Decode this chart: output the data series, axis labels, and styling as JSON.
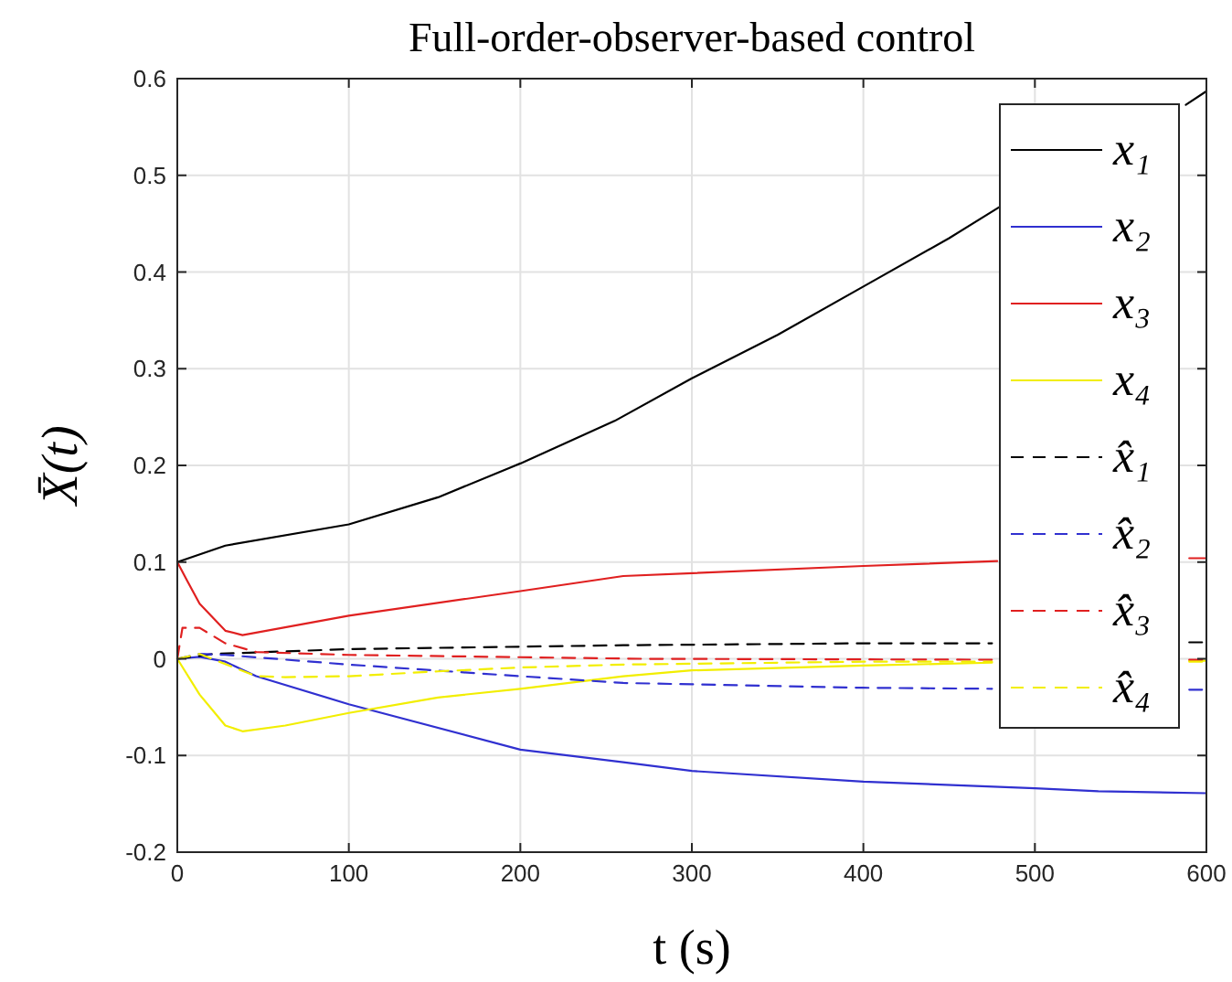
{
  "chart_data": {
    "type": "line",
    "title": "Full-order-observer-based control",
    "xlabel": "t (s)",
    "ylabel": "X̄(t)",
    "xlim": [
      0,
      600
    ],
    "xticks": [
      0,
      100,
      200,
      300,
      400,
      500,
      600
    ],
    "ylim": [
      -0.2,
      0.6
    ],
    "yticks": [
      -0.2,
      -0.1,
      0,
      0.1,
      0.2,
      0.3,
      0.4,
      0.5,
      0.6
    ],
    "grid": true,
    "legend": "top right",
    "marker": "none",
    "series": [
      {
        "name": "x₁",
        "color": "#000000",
        "line_style": "solid",
        "x": [
          0,
          28,
          100,
          152,
          200,
          255,
          300,
          350,
          400,
          450,
          480,
          530,
          588,
          600
        ],
        "values": [
          0.1,
          0.117,
          0.139,
          0.167,
          0.202,
          0.246,
          0.29,
          0.335,
          0.385,
          0.435,
          0.468,
          null,
          0.573,
          0.587
        ]
      },
      {
        "name": "x₂",
        "color": "#3030d0",
        "line_style": "solid",
        "x": [
          0,
          13,
          28,
          46,
          100,
          200,
          260,
          300,
          400,
          500,
          537,
          600
        ],
        "values": [
          0,
          0.002,
          -0.003,
          -0.018,
          -0.047,
          -0.094,
          -0.107,
          -0.116,
          -0.127,
          -0.134,
          -0.137,
          -0.139
        ]
      },
      {
        "name": "x₃",
        "color": "#e02020",
        "line_style": "solid",
        "x": [
          0,
          6,
          13,
          28,
          38,
          100,
          200,
          260,
          400,
          478,
          530,
          590,
          600
        ],
        "values": [
          0.1,
          0.08,
          0.057,
          0.029,
          0.0245,
          0.0446,
          0.07,
          0.0856,
          0.096,
          0.101,
          null,
          0.104,
          0.104
        ]
      },
      {
        "name": "x₄",
        "color": "#f2ee00",
        "line_style": "solid",
        "x": [
          0,
          13,
          28,
          38,
          63,
          100,
          152,
          200,
          260,
          300,
          400,
          475,
          530,
          590,
          600
        ],
        "values": [
          0,
          -0.037,
          -0.069,
          -0.075,
          -0.069,
          -0.056,
          -0.04,
          -0.031,
          -0.018,
          -0.012,
          -0.007,
          -0.004,
          null,
          -0.002,
          -0.002
        ]
      },
      {
        "name": "x̂₁",
        "color": "#000000",
        "line_style": "dashed",
        "x": [
          0,
          21,
          100,
          260,
          400,
          475,
          530,
          590,
          600
        ],
        "values": [
          0,
          0.005,
          0.01,
          0.014,
          0.016,
          0.016,
          null,
          0.017,
          0.017
        ]
      },
      {
        "name": "x̂₂",
        "color": "#3030d0",
        "line_style": "dashed",
        "x": [
          0,
          13,
          28,
          100,
          200,
          260,
          400,
          475,
          530,
          590,
          600
        ],
        "values": [
          0,
          0.005,
          0.004,
          -0.006,
          -0.018,
          -0.025,
          -0.03,
          -0.031,
          null,
          -0.032,
          -0.032
        ]
      },
      {
        "name": "x̂₃",
        "color": "#e02020",
        "line_style": "dashed",
        "x": [
          0,
          3,
          13,
          28,
          46,
          100,
          270,
          475,
          530,
          590,
          600
        ],
        "values": [
          0,
          0.032,
          0.032,
          0.016,
          0.007,
          0.004,
          0,
          -0.001,
          null,
          -0.001,
          -0.001
        ]
      },
      {
        "name": "x̂₄",
        "color": "#f2ee00",
        "line_style": "dashed",
        "x": [
          0,
          13,
          46,
          63,
          100,
          152,
          200,
          260,
          400,
          475,
          530,
          590,
          600
        ],
        "values": [
          0,
          0.005,
          -0.018,
          -0.019,
          -0.018,
          -0.013,
          -0.009,
          -0.006,
          -0.003,
          -0.003,
          null,
          -0.003,
          -0.003
        ]
      }
    ]
  }
}
